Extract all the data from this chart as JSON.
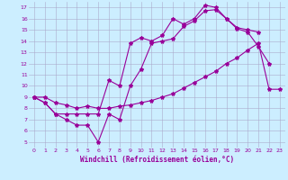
{
  "background_color": "#cceeff",
  "grid_color": "#aaaacc",
  "line_color": "#990099",
  "x_values": [
    0,
    1,
    2,
    3,
    4,
    5,
    6,
    7,
    8,
    9,
    10,
    11,
    12,
    13,
    14,
    15,
    16,
    17,
    18,
    19,
    20,
    21,
    22,
    23
  ],
  "series_top": [
    9.0,
    8.5,
    7.5,
    7.5,
    7.5,
    7.5,
    7.5,
    10.5,
    10.0,
    13.8,
    14.3,
    14.0,
    14.5,
    16.0,
    15.5,
    16.0,
    17.2,
    17.0,
    16.0,
    15.2,
    15.0,
    14.8,
    null,
    null
  ],
  "series_mid": [
    9.0,
    8.5,
    7.5,
    7.0,
    6.5,
    6.5,
    5.0,
    7.5,
    7.0,
    10.0,
    11.5,
    13.8,
    14.0,
    14.2,
    15.3,
    15.8,
    16.7,
    16.8,
    16.0,
    15.1,
    14.8,
    13.5,
    12.0,
    null
  ],
  "series_bot": [
    9.0,
    9.0,
    8.5,
    8.3,
    8.0,
    8.2,
    8.0,
    8.0,
    8.2,
    8.3,
    8.5,
    8.7,
    9.0,
    9.3,
    9.8,
    10.3,
    10.8,
    11.3,
    12.0,
    12.5,
    13.2,
    13.8,
    9.7,
    9.7
  ],
  "xlabel": "Windchill (Refroidissement éolien,°C)",
  "ylim": [
    4.5,
    17.5
  ],
  "yticks": [
    5,
    6,
    7,
    8,
    9,
    10,
    11,
    12,
    13,
    14,
    15,
    16,
    17
  ],
  "xlim": [
    -0.5,
    23.5
  ],
  "xticks": [
    0,
    1,
    2,
    3,
    4,
    5,
    6,
    7,
    8,
    9,
    10,
    11,
    12,
    13,
    14,
    15,
    16,
    17,
    18,
    19,
    20,
    21,
    22,
    23
  ]
}
